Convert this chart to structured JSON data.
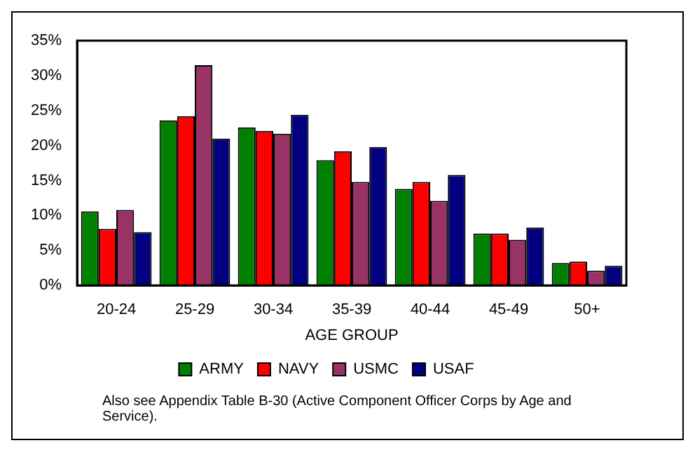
{
  "chart_data": {
    "type": "bar",
    "xlabel": "AGE GROUP",
    "categories": [
      "20-24",
      "25-29",
      "30-34",
      "35-39",
      "40-44",
      "45-49",
      "50+"
    ],
    "series": [
      {
        "name": "ARMY",
        "color": "#008000",
        "values": [
          10.6,
          23.6,
          22.6,
          17.9,
          13.8,
          7.4,
          3.2
        ]
      },
      {
        "name": "NAVY",
        "color": "#ff0000",
        "values": [
          8.1,
          24.2,
          22.1,
          19.2,
          14.8,
          7.4,
          3.4
        ]
      },
      {
        "name": "USMC",
        "color": "#993366",
        "values": [
          10.8,
          31.5,
          21.7,
          14.8,
          12.1,
          6.5,
          2.1
        ]
      },
      {
        "name": "USAF",
        "color": "#000080",
        "values": [
          7.6,
          21.0,
          24.4,
          19.8,
          15.8,
          8.3,
          2.8
        ]
      }
    ],
    "ylim": [
      0,
      35
    ],
    "yticks": [
      {
        "value": 0,
        "label": "0%"
      },
      {
        "value": 5,
        "label": "5%"
      },
      {
        "value": 10,
        "label": "10%"
      },
      {
        "value": 15,
        "label": "15%"
      },
      {
        "value": 20,
        "label": "20%"
      },
      {
        "value": 25,
        "label": "25%"
      },
      {
        "value": 30,
        "label": "30%"
      },
      {
        "value": 35,
        "label": "35%"
      }
    ],
    "grid": false,
    "legend": "bottom",
    "annotations": [
      "Also see Appendix Table B-30 (Active Component Officer Corps by Age and Service)."
    ]
  }
}
